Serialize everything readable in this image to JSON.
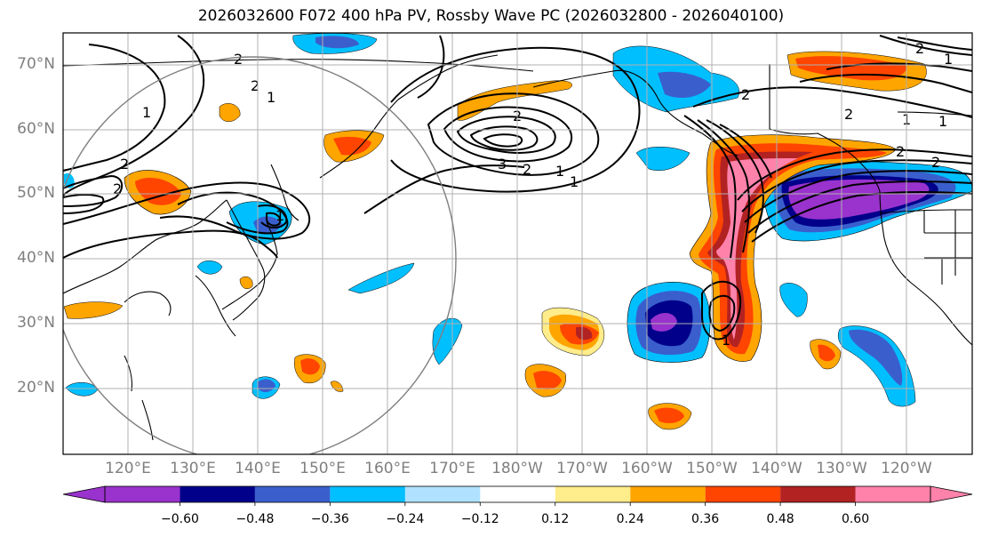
{
  "title": "2026032600 F072 400 hPa PV, Rossby Wave PC (2026032800 - 2026040100)",
  "lat_labels": [
    "70°N",
    "60°N",
    "50°N",
    "40°N",
    "30°N",
    "20°N"
  ],
  "lon_labels": [
    "120°E",
    "130°E",
    "140°E",
    "150°E",
    "160°E",
    "170°E",
    "180°W",
    "170°W",
    "160°W",
    "150°W",
    "140°W",
    "130°W",
    "120°W"
  ],
  "colorbar": {
    "colors": [
      "#9a32cd",
      "#00008b",
      "#3a5fcd",
      "#00bfff",
      "#b0e2ff",
      "#ffffff",
      "#ffec8b",
      "#ffa500",
      "#ff4500",
      "#b22222",
      "#ff82ab"
    ],
    "ticks": [
      "−0.60",
      "−0.48",
      "−0.36",
      "−0.24",
      "−0.12",
      "0.12",
      "0.24",
      "0.36",
      "0.48",
      "0.60"
    ]
  },
  "contour_labels": [
    "2",
    "1",
    "1",
    "2",
    "2",
    "2",
    "1",
    "3",
    "2",
    "1",
    "2",
    "1",
    "2",
    "2",
    "2",
    "1",
    "2",
    "1",
    "1",
    "2",
    "1"
  ]
}
